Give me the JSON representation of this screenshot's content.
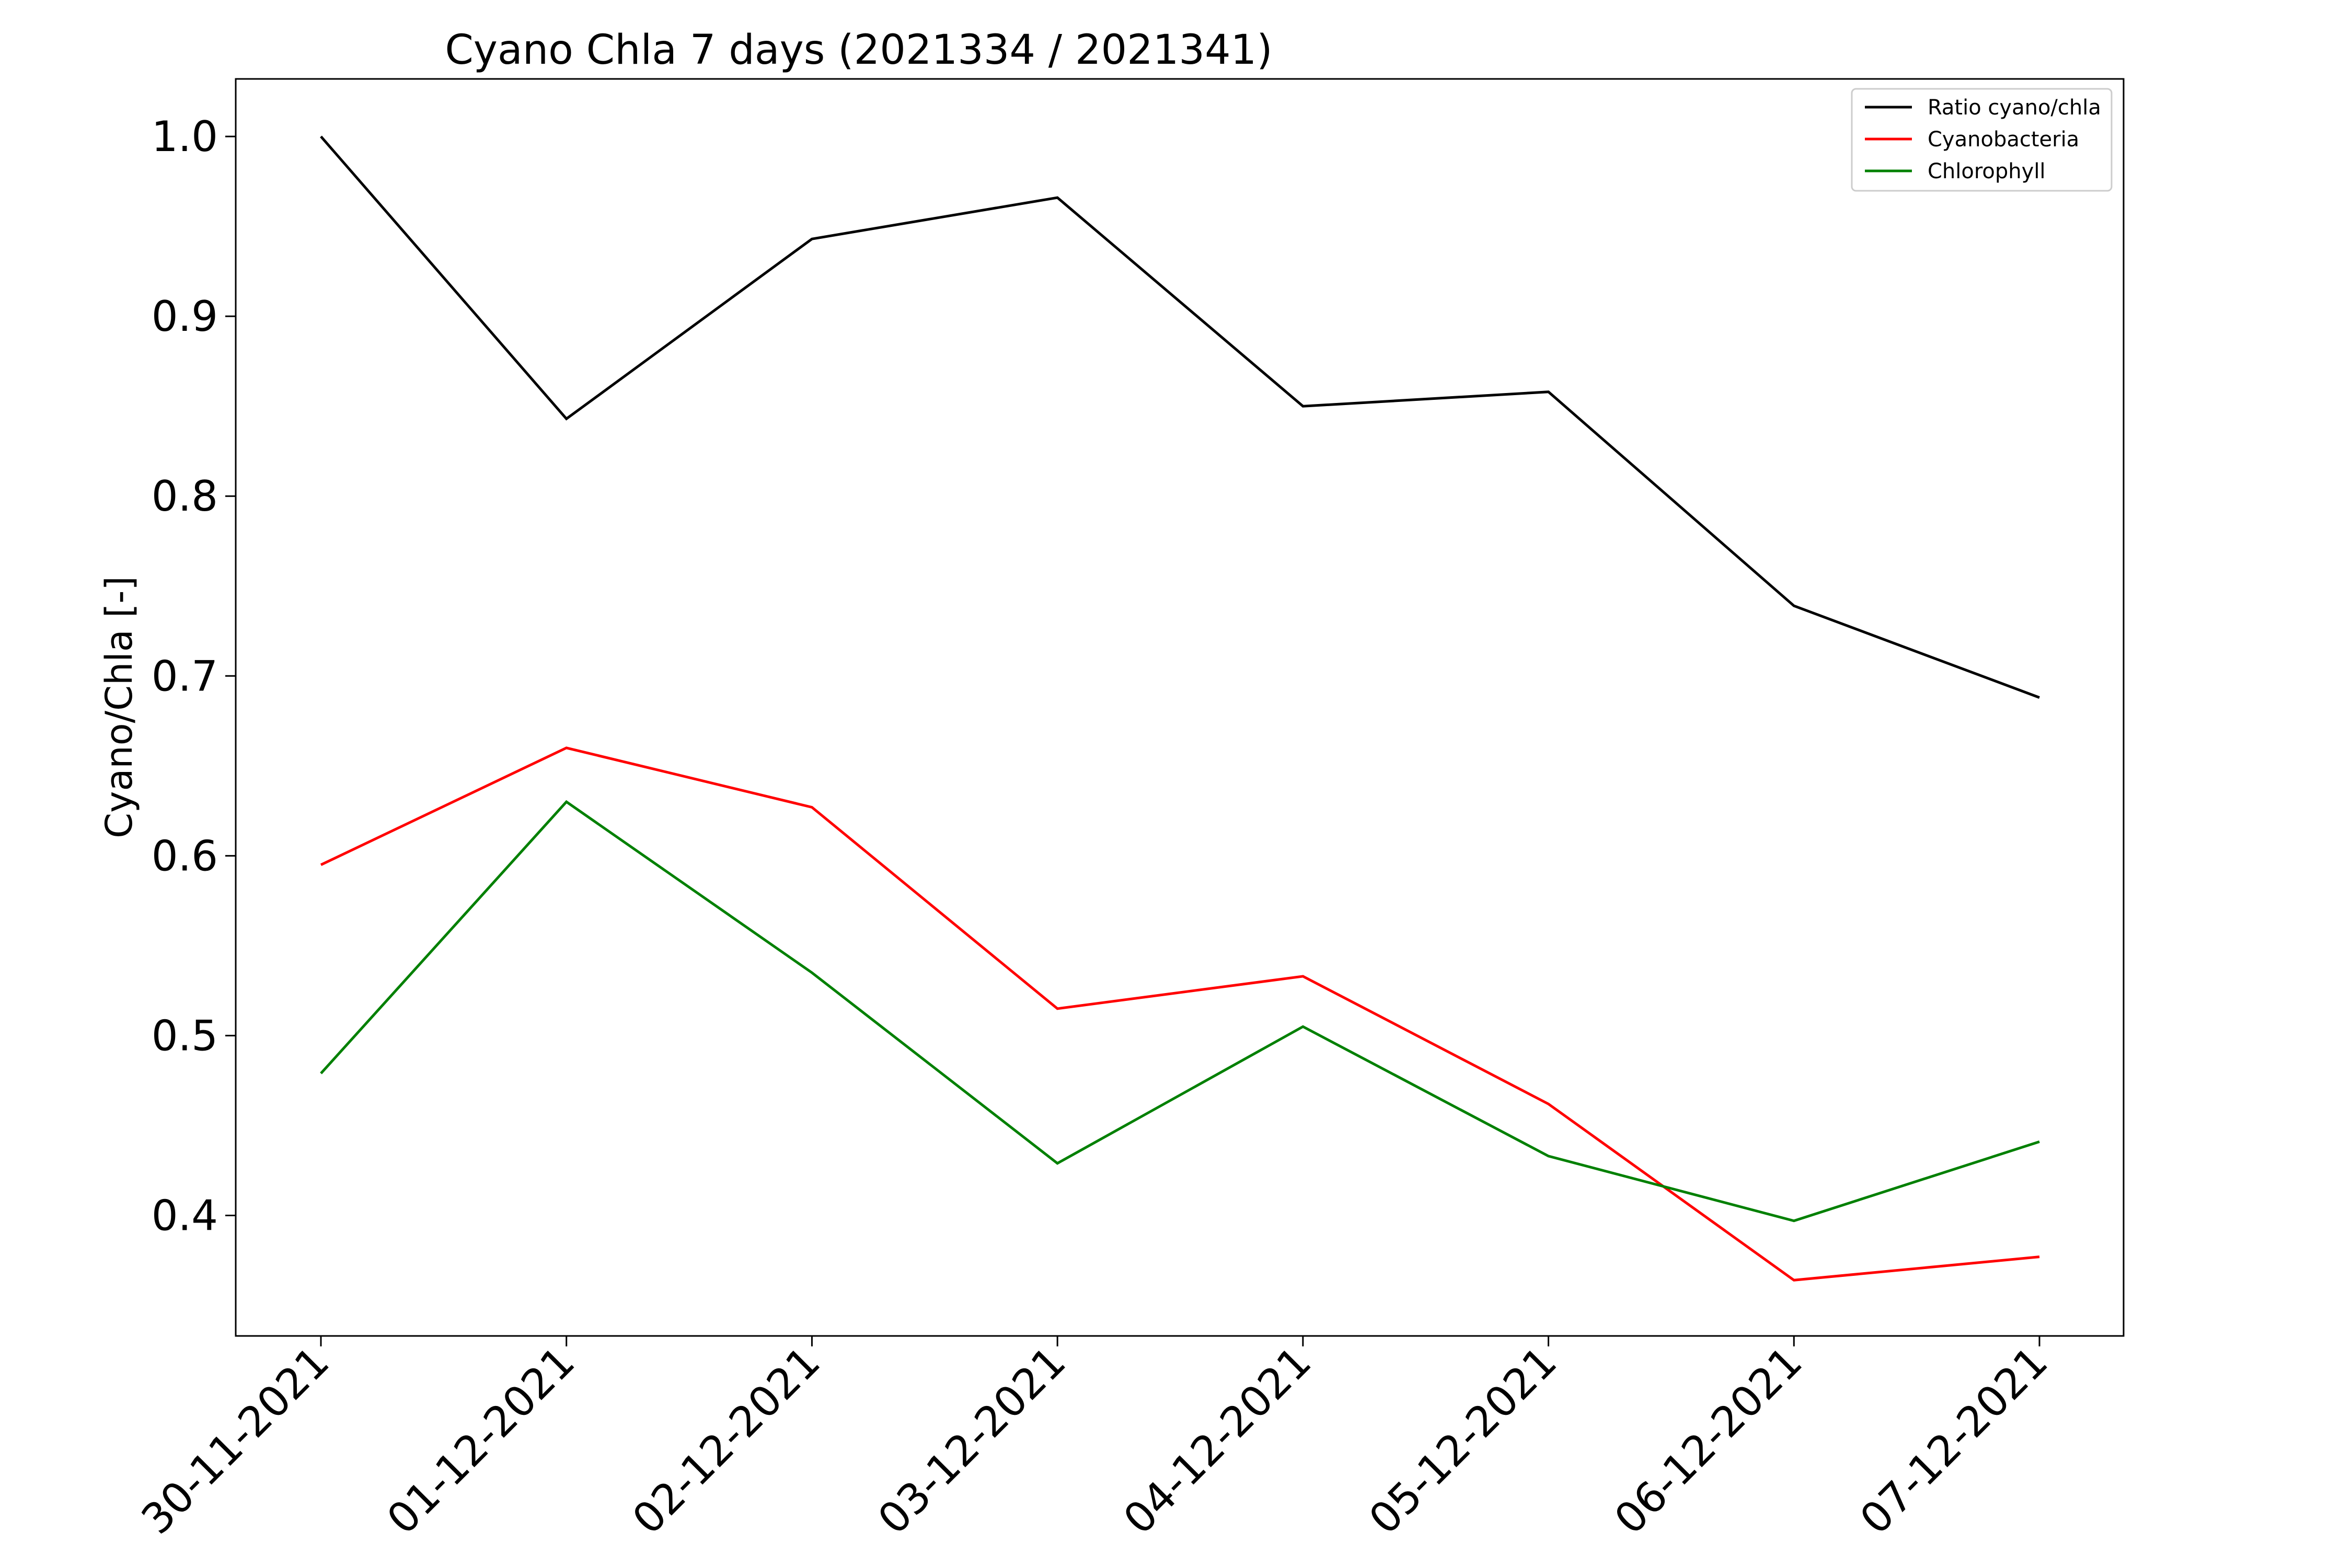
{
  "chart_data": {
    "type": "line",
    "title": "Cyano Chla 7 days (2021334 / 2021341)",
    "xlabel": "",
    "ylabel": "Cyano/Chla [-]",
    "categories": [
      "30-11-2021",
      "01-12-2021",
      "02-12-2021",
      "03-12-2021",
      "04-12-2021",
      "05-12-2021",
      "06-12-2021",
      "07-12-2021"
    ],
    "yticks": [
      "0.4",
      "0.5",
      "0.6",
      "0.7",
      "0.8",
      "0.9",
      "1.0"
    ],
    "ylim": [
      0.333,
      1.032
    ],
    "grid": false,
    "legend": "top-right",
    "series": [
      {
        "name": "Ratio cyano/chla",
        "color": "#000000",
        "values": [
          1.0,
          0.843,
          0.943,
          0.966,
          0.85,
          0.858,
          0.739,
          0.688
        ]
      },
      {
        "name": "Cyanobacteria",
        "color": "#ff0000",
        "values": [
          0.595,
          0.66,
          0.627,
          0.515,
          0.533,
          0.462,
          0.364,
          0.377
        ]
      },
      {
        "name": "Chlorophyll",
        "color": "#008000",
        "values": [
          0.479,
          0.63,
          0.535,
          0.429,
          0.505,
          0.433,
          0.397,
          0.441
        ]
      }
    ]
  }
}
